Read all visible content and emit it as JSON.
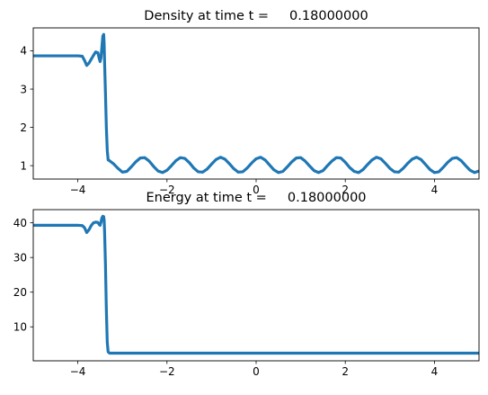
{
  "chart_data": [
    {
      "type": "line",
      "title": "Density at time t =     0.18000000",
      "xlabel": "",
      "ylabel": "",
      "xlim": [
        -5,
        5
      ],
      "ylim": [
        0.65,
        4.6
      ],
      "xticks": [
        -4,
        -2,
        0,
        2,
        4
      ],
      "yticks": [
        1,
        2,
        3,
        4
      ],
      "xtick_labels": [
        "−4",
        "−2",
        "0",
        "2",
        "4"
      ],
      "ytick_labels": [
        "1",
        "2",
        "3",
        "4"
      ],
      "grid": false,
      "color": "#1f77b4",
      "series": [
        {
          "x": [
            -5.0,
            -4.5,
            -4.0,
            -3.9,
            -3.85,
            -3.8,
            -3.75,
            -3.7,
            -3.65,
            -3.6,
            -3.55,
            -3.52,
            -3.5,
            -3.48,
            -3.46,
            -3.44,
            -3.42,
            -3.41,
            -3.4,
            -3.38,
            -3.36,
            -3.34,
            -3.32,
            -3.3,
            -3.28,
            -3.2,
            -3.1,
            -3.0,
            -2.9,
            -2.8,
            -2.7,
            -2.6,
            -2.5,
            -2.4,
            -2.3,
            -2.2,
            -2.1,
            -2.0,
            -1.9,
            -1.8,
            -1.7,
            -1.6,
            -1.5,
            -1.4,
            -1.3,
            -1.2,
            -1.1,
            -1.0,
            -0.9,
            -0.8,
            -0.7,
            -0.6,
            -0.5,
            -0.4,
            -0.3,
            -0.2,
            -0.1,
            0.0,
            0.1,
            0.2,
            0.3,
            0.4,
            0.5,
            0.6,
            0.7,
            0.8,
            0.9,
            1.0,
            1.1,
            1.2,
            1.3,
            1.4,
            1.5,
            1.6,
            1.7,
            1.8,
            1.9,
            2.0,
            2.1,
            2.2,
            2.3,
            2.4,
            2.5,
            2.6,
            2.7,
            2.8,
            2.9,
            3.0,
            3.1,
            3.2,
            3.3,
            3.4,
            3.5,
            3.6,
            3.7,
            3.8,
            3.9,
            4.0,
            4.1,
            4.2,
            4.3,
            4.4,
            4.5,
            4.6,
            4.7,
            4.8,
            4.9,
            5.0
          ],
          "y": [
            3.87,
            3.87,
            3.87,
            3.86,
            3.75,
            3.62,
            3.68,
            3.78,
            3.88,
            3.97,
            3.95,
            3.8,
            3.72,
            3.82,
            4.1,
            4.38,
            4.43,
            4.2,
            3.7,
            2.9,
            2.0,
            1.4,
            1.15,
            1.14,
            1.12,
            1.05,
            0.93,
            0.83,
            0.85,
            0.97,
            1.1,
            1.2,
            1.21,
            1.12,
            0.98,
            0.86,
            0.82,
            0.88,
            1.0,
            1.13,
            1.21,
            1.19,
            1.08,
            0.94,
            0.84,
            0.83,
            0.91,
            1.04,
            1.16,
            1.22,
            1.17,
            1.05,
            0.92,
            0.83,
            0.84,
            0.94,
            1.07,
            1.18,
            1.22,
            1.15,
            1.02,
            0.89,
            0.82,
            0.85,
            0.97,
            1.1,
            1.2,
            1.21,
            1.12,
            0.99,
            0.87,
            0.82,
            0.87,
            1.0,
            1.12,
            1.21,
            1.2,
            1.09,
            0.95,
            0.85,
            0.82,
            0.9,
            1.03,
            1.15,
            1.22,
            1.18,
            1.06,
            0.93,
            0.84,
            0.83,
            0.93,
            1.06,
            1.17,
            1.22,
            1.16,
            1.03,
            0.9,
            0.82,
            0.84,
            0.96,
            1.09,
            1.19,
            1.21,
            1.13,
            1.0,
            0.88,
            0.82,
            0.86
          ]
        }
      ]
    },
    {
      "type": "line",
      "title": "Energy at time t =     0.18000000",
      "xlabel": "",
      "ylabel": "",
      "xlim": [
        -5,
        5
      ],
      "ylim": [
        0.2,
        43.8
      ],
      "xticks": [
        -4,
        -2,
        0,
        2,
        4
      ],
      "yticks": [
        10,
        20,
        30,
        40
      ],
      "xtick_labels": [
        "−4",
        "−2",
        "0",
        "2",
        "4"
      ],
      "ytick_labels": [
        "10",
        "20",
        "30",
        "40"
      ],
      "grid": false,
      "color": "#1f77b4",
      "series": [
        {
          "x": [
            -5.0,
            -4.5,
            -4.0,
            -3.9,
            -3.85,
            -3.8,
            -3.75,
            -3.7,
            -3.65,
            -3.6,
            -3.55,
            -3.52,
            -3.5,
            -3.48,
            -3.46,
            -3.44,
            -3.42,
            -3.41,
            -3.4,
            -3.38,
            -3.36,
            -3.34,
            -3.32,
            -3.3,
            -3.28,
            -3.2,
            -3.0,
            -2.0,
            -1.0,
            0.0,
            1.0,
            2.0,
            3.0,
            4.0,
            5.0
          ],
          "y": [
            39.3,
            39.3,
            39.3,
            39.2,
            38.6,
            37.2,
            38.0,
            39.2,
            40.0,
            40.2,
            40.1,
            39.5,
            39.3,
            40.2,
            41.4,
            41.9,
            41.8,
            40.8,
            37.5,
            28.0,
            15.0,
            5.5,
            2.8,
            2.5,
            2.4,
            2.4,
            2.4,
            2.4,
            2.4,
            2.4,
            2.4,
            2.4,
            2.4,
            2.4,
            2.4
          ]
        }
      ]
    }
  ]
}
